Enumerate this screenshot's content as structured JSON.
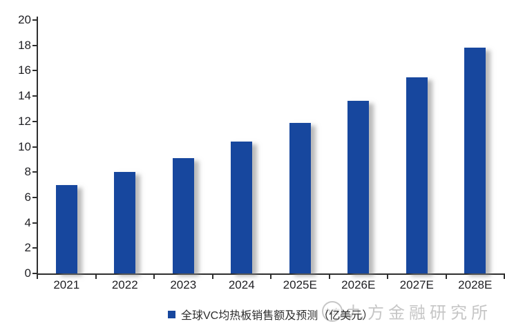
{
  "chart_data": {
    "type": "bar",
    "categories": [
      "2021",
      "2022",
      "2023",
      "2024",
      "2025E",
      "2026E",
      "2027E",
      "2028E"
    ],
    "values": [
      7.0,
      8.0,
      9.1,
      10.4,
      11.9,
      13.6,
      15.5,
      17.8
    ],
    "title": "",
    "xlabel": "",
    "ylabel": "",
    "ylim": [
      0,
      20
    ],
    "ytick_step": 2,
    "grid": false,
    "legend_entries": [
      "全球VC均热板销售额及预测（亿美元）"
    ],
    "legend_position": "bottom-center",
    "bar_color": "#17479E"
  },
  "legend": {
    "label": "全球VC均热板销售额及预测（亿美元）",
    "marker_color": "#17479E"
  },
  "watermark": {
    "logo_text": "九方",
    "text": "九方金融研究所",
    "color": "#c6c6c6"
  },
  "colors": {
    "bar": "#17479E",
    "axis": "#2e2e2e",
    "tick_label": "#1f1f23",
    "background": "#ffffff"
  }
}
